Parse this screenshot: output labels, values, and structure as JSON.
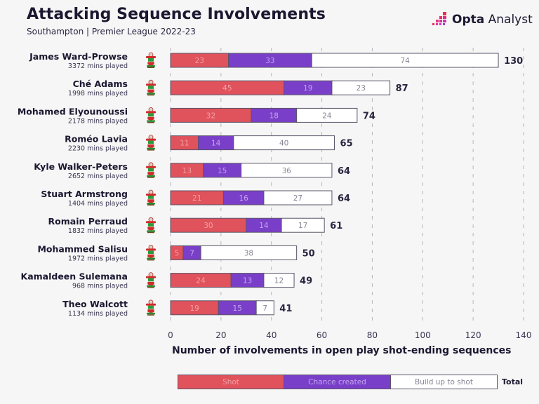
{
  "header": {
    "title": "Attacking Sequence Involvements",
    "subtitle": "Southampton | Premier League 2022-23",
    "brand_bold": "Opta",
    "brand_light": "Analyst",
    "brand_icon": "opta-pixel-logo-icon"
  },
  "colors": {
    "shot": "#e0525c",
    "chance": "#7a3fc9",
    "buildup": "#ffffff",
    "shot_text": "#f3a0a6",
    "chance_text": "#c2a6ec",
    "buildup_text": "#8a8495",
    "border": "#5a5468",
    "grid": "#b8b4c0"
  },
  "club_icon": "southampton-crest-icon",
  "chart_data": {
    "type": "bar",
    "orientation": "horizontal",
    "stacked": true,
    "title": "Attacking Sequence Involvements",
    "subtitle": "Southampton | Premier League 2022-23",
    "xlabel": "Number of involvements in open play shot-ending sequences",
    "ylabel": "",
    "xlim": [
      0,
      140
    ],
    "xticks": [
      0,
      20,
      40,
      60,
      80,
      100,
      120,
      140
    ],
    "grid": "vertical dashed",
    "legend_position": "bottom",
    "categories": [
      "James Ward-Prowse",
      "Ché Adams",
      "Mohamed Elyounoussi",
      "Roméo Lavia",
      "Kyle Walker-Peters",
      "Stuart Armstrong",
      "Romain Perraud",
      "Mohammed Salisu",
      "Kamaldeen Sulemana",
      "Theo Walcott"
    ],
    "minutes_played": [
      "3372 mins played",
      "1998 mins played",
      "2178 mins played",
      "2230 mins played",
      "2652 mins played",
      "1404 mins played",
      "1832 mins played",
      "1972 mins played",
      "968 mins played",
      "1134 mins played"
    ],
    "series": [
      {
        "name": "Shot",
        "values": [
          23,
          45,
          32,
          11,
          13,
          21,
          30,
          5,
          24,
          19
        ]
      },
      {
        "name": "Chance created",
        "values": [
          33,
          19,
          18,
          14,
          15,
          16,
          14,
          7,
          13,
          15
        ]
      },
      {
        "name": "Build up to shot",
        "values": [
          74,
          23,
          24,
          40,
          36,
          27,
          17,
          38,
          12,
          7
        ]
      }
    ],
    "totals": [
      130,
      87,
      74,
      65,
      64,
      64,
      61,
      50,
      49,
      41
    ],
    "legend": [
      "Shot",
      "Chance created",
      "Build up to shot",
      "Total"
    ]
  }
}
